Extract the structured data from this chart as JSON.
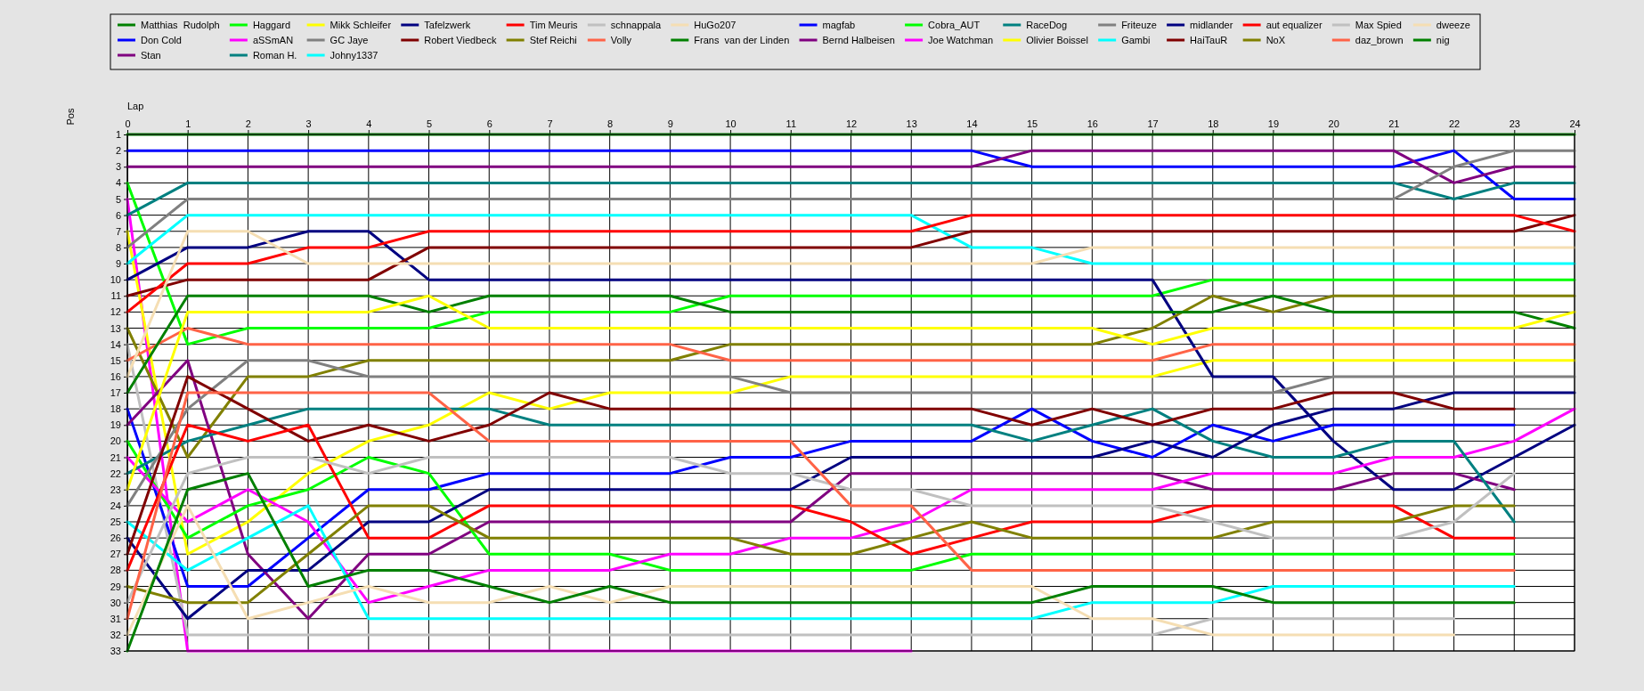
{
  "chart_data": {
    "type": "line",
    "xlabel": "Lap",
    "ylabel": "Pos",
    "x": [
      0,
      1,
      2,
      3,
      4,
      5,
      6,
      7,
      8,
      9,
      10,
      11,
      12,
      13,
      14,
      15,
      16,
      17,
      18,
      19,
      20,
      21,
      22,
      23,
      24
    ],
    "xlim": [
      0,
      24
    ],
    "xticks": [
      0,
      1,
      2,
      3,
      4,
      5,
      6,
      7,
      8,
      9,
      10,
      11,
      12,
      13,
      14,
      15,
      16,
      17,
      18,
      19,
      20,
      21,
      22,
      23,
      24
    ],
    "ylim": [
      33,
      1
    ],
    "yticks": [
      1,
      2,
      3,
      4,
      5,
      6,
      7,
      8,
      9,
      10,
      11,
      12,
      13,
      14,
      15,
      16,
      17,
      18,
      19,
      20,
      21,
      22,
      23,
      24,
      25,
      26,
      27,
      28,
      29,
      30,
      31,
      32,
      33
    ],
    "grid": true,
    "legend": "top",
    "line_style": "solid",
    "series": [
      {
        "name": "Matthias  Rudolph",
        "color": "#008000",
        "values": [
          1,
          1,
          1,
          1,
          1,
          1,
          1,
          1,
          1,
          1,
          1,
          1,
          1,
          1,
          1,
          1,
          1,
          1,
          1,
          1,
          1,
          1,
          1,
          1,
          1
        ]
      },
      {
        "name": "Don Cold",
        "color": "#0000ff",
        "values": [
          2,
          2,
          2,
          2,
          2,
          2,
          2,
          2,
          2,
          2,
          2,
          2,
          2,
          2,
          2,
          3,
          3,
          3,
          3,
          3,
          3,
          3,
          2,
          5,
          5
        ]
      },
      {
        "name": "Stan",
        "color": "#800080",
        "values": [
          3,
          3,
          3,
          3,
          3,
          3,
          3,
          3,
          3,
          3,
          3,
          3,
          3,
          3,
          3,
          2,
          2,
          2,
          2,
          2,
          2,
          2,
          4,
          3,
          3
        ]
      },
      {
        "name": "Haggard",
        "color": "#00ff00",
        "values": [
          4,
          14,
          13,
          13,
          13,
          13,
          12,
          12,
          12,
          12,
          11,
          11,
          11,
          11,
          11,
          11,
          11,
          11,
          10,
          10,
          10,
          10,
          10,
          10,
          10
        ]
      },
      {
        "name": "aSSmAN",
        "color": "#ff00ff",
        "values": [
          5,
          33,
          33,
          33,
          33,
          33,
          33,
          33,
          33,
          33,
          33,
          33,
          33,
          33,
          null,
          null,
          null,
          null,
          null,
          null,
          null,
          null,
          null,
          null,
          null
        ]
      },
      {
        "name": "Roman H.",
        "color": "#008080",
        "values": [
          6,
          4,
          4,
          4,
          4,
          4,
          4,
          4,
          4,
          4,
          4,
          4,
          4,
          4,
          4,
          4,
          4,
          4,
          4,
          4,
          4,
          4,
          5,
          4,
          4
        ]
      },
      {
        "name": "Mikk Schleifer",
        "color": "#ffff00",
        "values": [
          7,
          27,
          25,
          22,
          20,
          19,
          17,
          18,
          17,
          17,
          17,
          16,
          16,
          16,
          16,
          16,
          16,
          16,
          15,
          15,
          15,
          15,
          15,
          15,
          15
        ]
      },
      {
        "name": "GC Jaye",
        "color": "#808080",
        "values": [
          8,
          5,
          5,
          5,
          5,
          5,
          5,
          5,
          5,
          5,
          5,
          5,
          5,
          5,
          5,
          5,
          5,
          5,
          5,
          5,
          5,
          5,
          3,
          2,
          2
        ]
      },
      {
        "name": "Johny1337",
        "color": "#00ffff",
        "values": [
          9,
          6,
          6,
          6,
          6,
          6,
          6,
          6,
          6,
          6,
          6,
          6,
          6,
          6,
          8,
          8,
          9,
          9,
          9,
          9,
          9,
          9,
          9,
          9,
          9
        ]
      },
      {
        "name": "Tafelzwerk",
        "color": "#000080",
        "values": [
          10,
          8,
          8,
          7,
          7,
          10,
          10,
          10,
          10,
          10,
          10,
          10,
          10,
          10,
          10,
          10,
          10,
          10,
          16,
          16,
          20,
          23,
          23,
          21,
          19
        ]
      },
      {
        "name": "Robert Viedbeck",
        "color": "#800000",
        "values": [
          11,
          10,
          10,
          10,
          10,
          8,
          8,
          8,
          8,
          8,
          8,
          8,
          8,
          8,
          7,
          7,
          7,
          7,
          7,
          7,
          7,
          7,
          7,
          7,
          6
        ]
      },
      {
        "name": "Tim Meuris",
        "color": "#ff0000",
        "values": [
          12,
          9,
          9,
          8,
          8,
          7,
          7,
          7,
          7,
          7,
          7,
          7,
          7,
          7,
          6,
          6,
          6,
          6,
          6,
          6,
          6,
          6,
          6,
          6,
          7
        ]
      },
      {
        "name": "Stef Reichi",
        "color": "#808000",
        "values": [
          13,
          21,
          16,
          16,
          15,
          15,
          15,
          15,
          15,
          15,
          14,
          14,
          14,
          14,
          14,
          14,
          14,
          13,
          11,
          12,
          11,
          11,
          11,
          11,
          11
        ]
      },
      {
        "name": "schnappala",
        "color": "#c0c0c0",
        "values": [
          14,
          32,
          32,
          32,
          32,
          32,
          32,
          32,
          32,
          32,
          32,
          32,
          32,
          32,
          32,
          32,
          32,
          32,
          31,
          31,
          31,
          31,
          31,
          null,
          null
        ]
      },
      {
        "name": "Volly",
        "color": "#ff6347",
        "values": [
          15,
          13,
          14,
          14,
          14,
          14,
          14,
          14,
          14,
          14,
          15,
          15,
          15,
          15,
          15,
          15,
          15,
          15,
          14,
          14,
          14,
          14,
          14,
          14,
          14
        ]
      },
      {
        "name": "HuGo207",
        "color": "#f5deb3",
        "values": [
          16,
          7,
          7,
          9,
          9,
          9,
          9,
          9,
          9,
          9,
          9,
          9,
          9,
          9,
          9,
          9,
          8,
          8,
          8,
          8,
          8,
          8,
          8,
          8,
          8
        ]
      },
      {
        "name": "Frans  van der Linden",
        "color": "#008000",
        "values": [
          17,
          11,
          11,
          11,
          11,
          12,
          11,
          11,
          11,
          11,
          12,
          12,
          12,
          12,
          12,
          12,
          12,
          12,
          12,
          11,
          12,
          12,
          12,
          12,
          13
        ]
      },
      {
        "name": "magfab",
        "color": "#0000ff",
        "values": [
          18,
          29,
          29,
          26,
          23,
          23,
          22,
          22,
          22,
          22,
          21,
          21,
          20,
          20,
          20,
          18,
          20,
          21,
          19,
          20,
          19,
          19,
          19,
          19,
          null
        ]
      },
      {
        "name": "Bernd Halbeisen",
        "color": "#800080",
        "values": [
          19,
          15,
          27,
          31,
          27,
          27,
          25,
          25,
          25,
          25,
          25,
          25,
          22,
          22,
          22,
          22,
          22,
          22,
          23,
          23,
          23,
          22,
          22,
          23,
          null
        ]
      },
      {
        "name": "Cobra_AUT",
        "color": "#00ff00",
        "values": [
          20,
          26,
          24,
          23,
          21,
          22,
          27,
          27,
          27,
          28,
          28,
          28,
          28,
          28,
          27,
          27,
          27,
          27,
          27,
          27,
          27,
          27,
          27,
          27,
          null
        ]
      },
      {
        "name": "Joe Watchman",
        "color": "#ff00ff",
        "values": [
          21,
          25,
          23,
          25,
          30,
          29,
          28,
          28,
          28,
          27,
          27,
          26,
          26,
          25,
          23,
          23,
          23,
          23,
          22,
          22,
          22,
          21,
          21,
          20,
          18
        ]
      },
      {
        "name": "RaceDog",
        "color": "#008080",
        "values": [
          22,
          20,
          19,
          18,
          18,
          18,
          18,
          19,
          19,
          19,
          19,
          19,
          19,
          19,
          19,
          20,
          19,
          18,
          20,
          21,
          21,
          20,
          20,
          25,
          null
        ]
      },
      {
        "name": "Olivier Boissel",
        "color": "#ffff00",
        "values": [
          23,
          12,
          12,
          12,
          12,
          11,
          13,
          13,
          13,
          13,
          13,
          13,
          13,
          13,
          13,
          13,
          13,
          14,
          13,
          13,
          13,
          13,
          13,
          13,
          12
        ]
      },
      {
        "name": "Friteuze",
        "color": "#808080",
        "values": [
          24,
          18,
          15,
          15,
          16,
          16,
          16,
          16,
          16,
          16,
          16,
          17,
          17,
          17,
          17,
          17,
          17,
          17,
          17,
          17,
          16,
          16,
          16,
          16,
          16
        ]
      },
      {
        "name": "Gambi",
        "color": "#00ffff",
        "values": [
          25,
          28,
          26,
          24,
          31,
          31,
          31,
          31,
          31,
          31,
          31,
          31,
          31,
          31,
          31,
          31,
          30,
          30,
          30,
          29,
          29,
          29,
          29,
          29,
          null
        ]
      },
      {
        "name": "midlander",
        "color": "#000080",
        "values": [
          26,
          31,
          28,
          28,
          25,
          25,
          23,
          23,
          23,
          23,
          23,
          23,
          21,
          21,
          21,
          21,
          21,
          20,
          21,
          19,
          18,
          18,
          17,
          17,
          17
        ]
      },
      {
        "name": "HaiTauR",
        "color": "#800000",
        "values": [
          27,
          16,
          18,
          20,
          19,
          20,
          19,
          17,
          18,
          18,
          18,
          18,
          18,
          18,
          18,
          19,
          18,
          19,
          18,
          18,
          17,
          17,
          18,
          18,
          null
        ]
      },
      {
        "name": "aut equalizer",
        "color": "#ff0000",
        "values": [
          28,
          19,
          20,
          19,
          26,
          26,
          24,
          24,
          24,
          24,
          24,
          24,
          25,
          27,
          26,
          25,
          25,
          25,
          24,
          24,
          24,
          24,
          26,
          26,
          null
        ]
      },
      {
        "name": "NoX",
        "color": "#808000",
        "values": [
          29,
          30,
          30,
          27,
          24,
          24,
          26,
          26,
          26,
          26,
          26,
          27,
          27,
          26,
          25,
          26,
          26,
          26,
          26,
          25,
          25,
          25,
          24,
          24,
          null
        ]
      },
      {
        "name": "Max Spied",
        "color": "#c0c0c0",
        "values": [
          30,
          22,
          21,
          21,
          22,
          21,
          21,
          21,
          21,
          21,
          22,
          22,
          23,
          23,
          24,
          24,
          24,
          24,
          25,
          26,
          26,
          26,
          25,
          22,
          null
        ]
      },
      {
        "name": "daz_brown",
        "color": "#ff6347",
        "values": [
          31,
          17,
          17,
          17,
          17,
          17,
          20,
          20,
          20,
          20,
          20,
          20,
          24,
          24,
          28,
          28,
          28,
          28,
          28,
          28,
          28,
          28,
          28,
          28,
          null
        ]
      },
      {
        "name": "dweeze",
        "color": "#f5deb3",
        "values": [
          32,
          24,
          31,
          30,
          29,
          30,
          30,
          29,
          30,
          29,
          29,
          29,
          29,
          29,
          29,
          29,
          31,
          31,
          32,
          32,
          32,
          32,
          32,
          null,
          null
        ]
      },
      {
        "name": "nig",
        "color": "#008000",
        "values": [
          33,
          23,
          22,
          29,
          28,
          28,
          29,
          30,
          29,
          30,
          30,
          30,
          30,
          30,
          30,
          30,
          29,
          29,
          29,
          30,
          30,
          30,
          30,
          30,
          null
        ]
      }
    ]
  }
}
